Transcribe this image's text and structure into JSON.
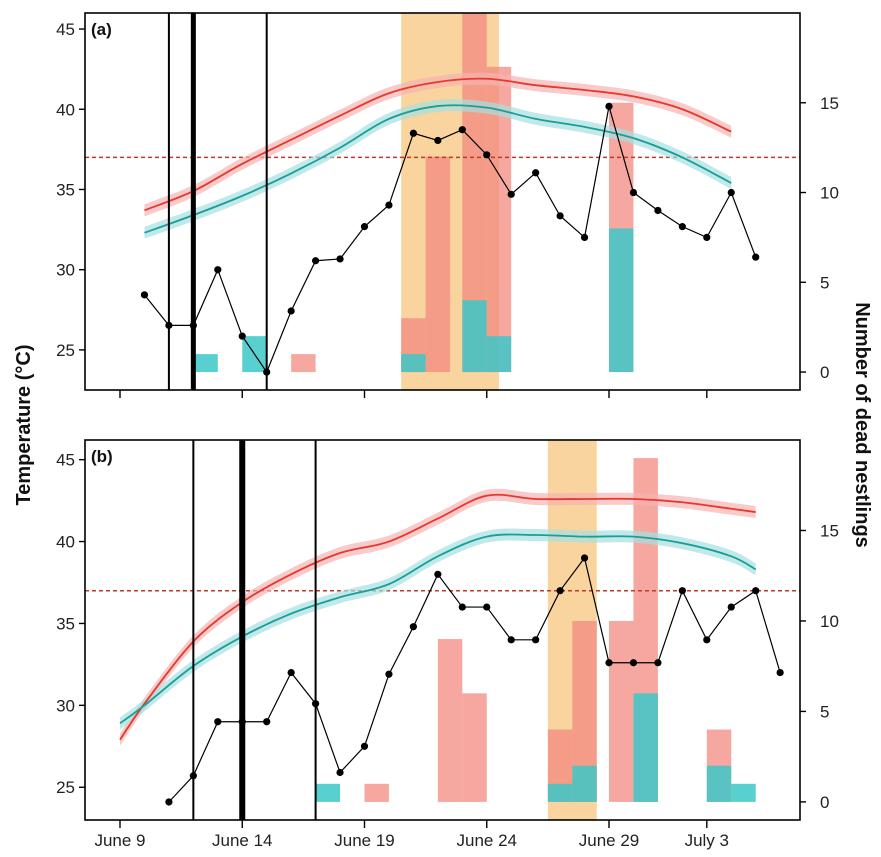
{
  "chart_data": {
    "type": "line",
    "y_left_label": "Temperature (°C)",
    "y_right_label": "Number of dead nestlings",
    "x_tick_labels": [
      "June 9",
      "June 14",
      "June 19",
      "June 24",
      "June 29",
      "July 3"
    ],
    "x_tick_days": [
      9,
      14,
      19,
      24,
      29,
      33
    ],
    "threshold_temp": 37,
    "colors": {
      "red": "#e8372c",
      "teal": "#1a9e98",
      "red_band": "#f5b3b3",
      "teal_band": "#a6dfe0",
      "red_bar": "#f28a80",
      "teal_bar": "#3cc8c8",
      "highlight": "#f7c986",
      "threshold": "#c0392b",
      "black": "#000000"
    },
    "panels": [
      {
        "label": "(a)",
        "ylim": [
          22.5,
          46
        ],
        "yticks": [
          25,
          30,
          35,
          40,
          45
        ],
        "y2lim": [
          -1,
          20
        ],
        "y2ticks": [
          0,
          5,
          10,
          15
        ],
        "vlines": [
          {
            "day": 11,
            "w": 2
          },
          {
            "day": 12,
            "w": 5
          },
          {
            "day": 15,
            "w": 2
          }
        ],
        "highlight": [
          20.5,
          24.5
        ],
        "red_line": [
          [
            10,
            33.7
          ],
          [
            12,
            34.9
          ],
          [
            14,
            36.6
          ],
          [
            16,
            38.1
          ],
          [
            18,
            39.6
          ],
          [
            20,
            41.0
          ],
          [
            22,
            41.7
          ],
          [
            24,
            41.9
          ],
          [
            26,
            41.5
          ],
          [
            28,
            41.2
          ],
          [
            30,
            40.8
          ],
          [
            32,
            40.0
          ],
          [
            34,
            38.6
          ]
        ],
        "teal_line": [
          [
            10,
            32.3
          ],
          [
            12,
            33.4
          ],
          [
            14,
            34.6
          ],
          [
            16,
            36.0
          ],
          [
            18,
            37.6
          ],
          [
            20,
            39.4
          ],
          [
            22,
            40.2
          ],
          [
            24,
            40.1
          ],
          [
            26,
            39.4
          ],
          [
            28,
            38.9
          ],
          [
            30,
            38.2
          ],
          [
            32,
            37.0
          ],
          [
            34,
            35.4
          ]
        ],
        "nestlings_left": [
          [
            10,
            4.3
          ],
          [
            11,
            2.6
          ],
          [
            12,
            2.6
          ],
          [
            13,
            5.7
          ],
          [
            14,
            2.0
          ],
          [
            15,
            0
          ],
          [
            16,
            3.4
          ],
          [
            17,
            6.2
          ],
          [
            18,
            6.3
          ],
          [
            19,
            8.1
          ],
          [
            20,
            9.3
          ],
          [
            21,
            13.3
          ],
          [
            22,
            12.9
          ],
          [
            23,
            13.5
          ],
          [
            24,
            12.1
          ],
          [
            25,
            9.9
          ],
          [
            26,
            11.1
          ],
          [
            27,
            8.7
          ],
          [
            28,
            7.5
          ],
          [
            29,
            14.8
          ],
          [
            30,
            10.0
          ],
          [
            31,
            9.0
          ],
          [
            32,
            8.1
          ],
          [
            33,
            7.5
          ],
          [
            34,
            10.0
          ],
          [
            35,
            6.4
          ]
        ],
        "bars_red": [
          [
            16.0,
            17.0,
            1
          ],
          [
            20.5,
            21.5,
            3
          ],
          [
            21.5,
            22.5,
            12
          ],
          [
            23.0,
            24.0,
            20
          ],
          [
            24.0,
            25.0,
            17
          ],
          [
            29.0,
            30.0,
            15
          ]
        ],
        "bars_teal": [
          [
            12.0,
            13.0,
            1
          ],
          [
            14.0,
            15.0,
            2
          ],
          [
            20.5,
            21.5,
            1
          ],
          [
            23.0,
            24.0,
            4
          ],
          [
            24.0,
            25.0,
            2
          ],
          [
            29.0,
            30.0,
            8
          ]
        ]
      },
      {
        "label": "(b)",
        "ylim": [
          23,
          46.2
        ],
        "yticks": [
          25,
          30,
          35,
          40,
          45
        ],
        "y2lim": [
          -1,
          20
        ],
        "y2ticks": [
          0,
          5,
          10,
          15
        ],
        "vlines": [
          {
            "day": 12,
            "w": 2
          },
          {
            "day": 14,
            "w": 6
          },
          {
            "day": 17,
            "w": 2
          }
        ],
        "highlight": [
          26.5,
          28.5
        ],
        "red_line": [
          [
            9,
            27.9
          ],
          [
            10,
            30.1
          ],
          [
            12,
            33.9
          ],
          [
            14,
            36.3
          ],
          [
            16,
            38.0
          ],
          [
            18,
            39.3
          ],
          [
            20,
            40.0
          ],
          [
            22,
            41.4
          ],
          [
            24,
            42.8
          ],
          [
            26,
            42.6
          ],
          [
            28,
            42.6
          ],
          [
            30,
            42.6
          ],
          [
            32,
            42.4
          ],
          [
            34,
            42.0
          ],
          [
            35,
            41.8
          ]
        ],
        "teal_line": [
          [
            9,
            28.9
          ],
          [
            10,
            30.0
          ],
          [
            12,
            32.4
          ],
          [
            14,
            34.2
          ],
          [
            16,
            35.6
          ],
          [
            18,
            36.6
          ],
          [
            20,
            37.4
          ],
          [
            22,
            39.1
          ],
          [
            24,
            40.3
          ],
          [
            26,
            40.4
          ],
          [
            28,
            40.3
          ],
          [
            30,
            40.3
          ],
          [
            32,
            39.9
          ],
          [
            34,
            39.1
          ],
          [
            35,
            38.3
          ]
        ],
        "nestlings_left": [
          [
            11,
            24.1
          ],
          [
            12,
            25.7
          ],
          [
            13,
            29.0
          ],
          [
            14,
            29.0
          ],
          [
            15,
            29.0
          ],
          [
            16,
            32.0
          ],
          [
            17,
            30.1
          ],
          [
            18,
            25.9
          ],
          [
            19,
            27.5
          ],
          [
            20,
            31.9
          ],
          [
            21,
            34.8
          ],
          [
            22,
            38.0
          ],
          [
            23,
            36.0
          ],
          [
            24,
            36.0
          ],
          [
            25,
            34.0
          ],
          [
            26,
            34.0
          ],
          [
            27,
            37.0
          ],
          [
            28,
            39.0
          ],
          [
            29,
            32.6
          ],
          [
            30,
            32.6
          ],
          [
            31,
            32.6
          ],
          [
            32,
            37.0
          ],
          [
            33,
            34.0
          ],
          [
            34,
            36.0
          ],
          [
            35,
            37.0
          ],
          [
            36,
            32.0
          ]
        ],
        "bars_red": [
          [
            19.0,
            20.0,
            1
          ],
          [
            22.0,
            23.0,
            9
          ],
          [
            23.0,
            24.0,
            6
          ],
          [
            26.5,
            27.5,
            4
          ],
          [
            27.5,
            28.5,
            10
          ],
          [
            29.0,
            30.0,
            10
          ],
          [
            30.0,
            31.0,
            19
          ],
          [
            33.0,
            34.0,
            4
          ]
        ],
        "bars_teal": [
          [
            17.0,
            18.0,
            1
          ],
          [
            26.5,
            27.5,
            1
          ],
          [
            27.5,
            28.5,
            2
          ],
          [
            30.0,
            31.0,
            6
          ],
          [
            33.0,
            34.0,
            2
          ],
          [
            34.0,
            35.0,
            1
          ]
        ]
      }
    ]
  }
}
